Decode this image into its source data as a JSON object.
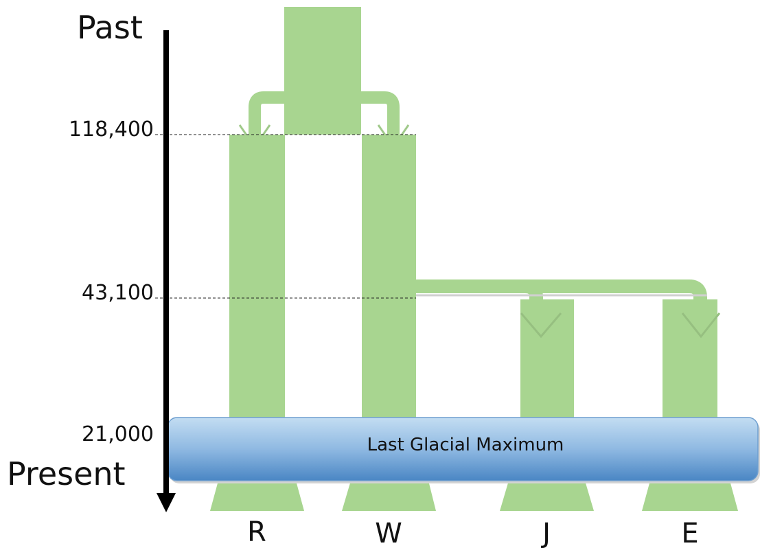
{
  "axis": {
    "top_label": "Past",
    "bottom_label": "Present"
  },
  "time_marks": [
    {
      "label": "118,400",
      "value": 118400
    },
    {
      "label": "43,100",
      "value": 43100
    },
    {
      "label": "21,000",
      "value": 21000
    }
  ],
  "band": {
    "label": "Last Glacial Maximum"
  },
  "populations": [
    {
      "label": "R"
    },
    {
      "label": "W"
    },
    {
      "label": "J"
    },
    {
      "label": "E"
    }
  ],
  "colors": {
    "branch": "#a8d590",
    "band_top": "#b9d6ee",
    "band_bottom": "#4f8ec9",
    "axis": "#000000"
  }
}
